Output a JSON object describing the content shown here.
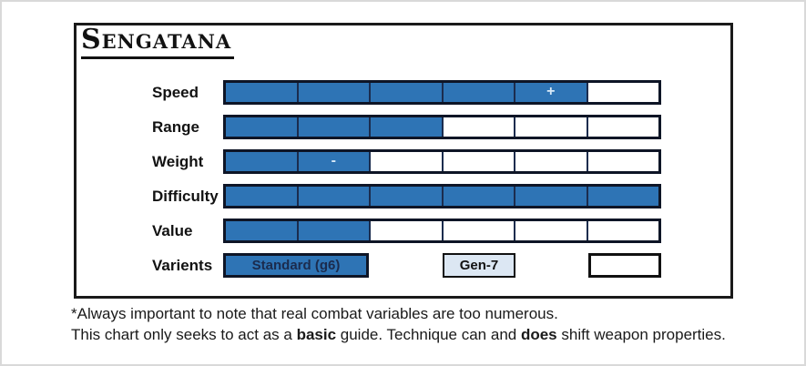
{
  "title": "Sengatana",
  "chart_data": {
    "type": "bar",
    "title": "Sengatana",
    "categories": [
      "Speed",
      "Range",
      "Weight",
      "Difficulty",
      "Value"
    ],
    "values": [
      5,
      3,
      2,
      6,
      2
    ],
    "scale_max": 6,
    "annotations": [
      {
        "category": "Speed",
        "segment": 5,
        "symbol": "+"
      },
      {
        "category": "Weight",
        "segment": 2,
        "symbol": "-"
      }
    ],
    "grid": false,
    "legend_position": "none",
    "colors": {
      "filled": "#2e74b5",
      "empty": "#ffffff",
      "segment_divider": "#1b2c4e",
      "bar_outline": "#0e1526"
    }
  },
  "variants": {
    "label": "Varients",
    "items": [
      {
        "label": "Standard (g6)",
        "style": "filled",
        "col_start": 1,
        "col_span": 2
      },
      {
        "label": "Gen-7",
        "style": "light",
        "col_start": 4,
        "col_span": 1
      },
      {
        "label": "",
        "style": "empty",
        "col_start": 6,
        "col_span": 1
      }
    ]
  },
  "footnote": {
    "line1": "*Always important to note that real combat variables are too numerous.",
    "line2_parts": [
      {
        "text": "This chart only seeks to act as a ",
        "bold": false
      },
      {
        "text": "basic",
        "bold": true
      },
      {
        "text": " guide. Technique can and ",
        "bold": false
      },
      {
        "text": "does",
        "bold": true
      },
      {
        "text": " shift weapon properties.",
        "bold": false
      }
    ]
  },
  "colors": {
    "accent_blue": "#2e74b5",
    "variant_light": "#dce7f3",
    "panel_border": "#1a1a1a",
    "page_border": "#d9d9d9"
  }
}
